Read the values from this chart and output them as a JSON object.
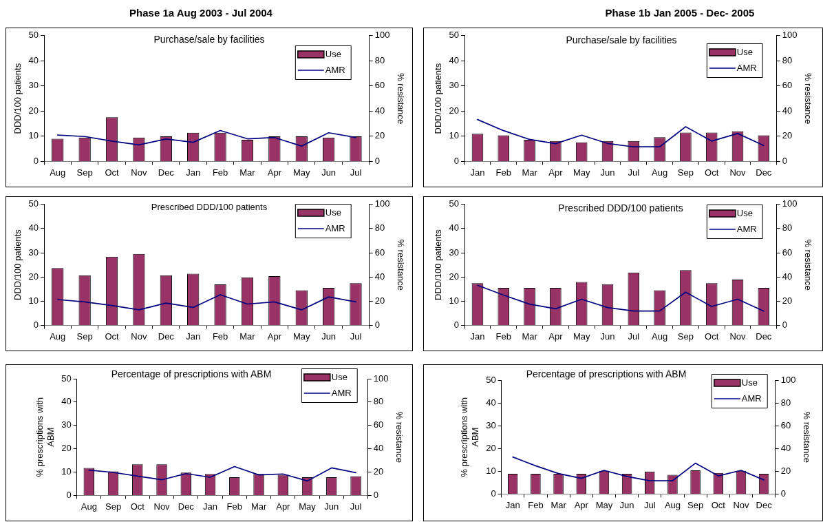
{
  "chart_data": [
    {
      "type": "bar",
      "title": "Purchase/sale by facilities",
      "annotations": [
        "Phase 1a Aug 2003 - Jul 2004"
      ],
      "ylabel": "DDD/100 patients",
      "y2label": "% resistance",
      "categories": [
        "Aug",
        "Sep",
        "Oct",
        "Nov",
        "Dec",
        "Jan",
        "Feb",
        "Mar",
        "Apr",
        "May",
        "Jun",
        "Jul"
      ],
      "series": [
        {
          "name": "Use",
          "color": "#993366",
          "values": [
            9.0,
            9.5,
            17.6,
            9.5,
            10.0,
            11.4,
            11.4,
            8.6,
            10.0,
            10.0,
            9.5,
            10.0
          ]
        },
        {
          "name": "AMR",
          "type": "line",
          "axis": "y2",
          "color": "#000080",
          "values": [
            21.0,
            19.8,
            16.2,
            13.2,
            17.8,
            15.2,
            24.6,
            18.0,
            19.0,
            12.2,
            22.8,
            19.0
          ]
        }
      ],
      "ylim": [
        0,
        50
      ],
      "yticks": [
        0,
        10,
        20,
        30,
        40,
        50
      ],
      "y2lim": [
        0,
        100
      ],
      "y2ticks": [
        0,
        20,
        40,
        60,
        80,
        100
      ],
      "legend": "top right"
    },
    {
      "type": "bar",
      "title": "Purchase/sale by facilities",
      "annotations": [
        "Phase 1b Jan 2005 - Dec- 2005"
      ],
      "ylabel": "DDD/100 patients",
      "y2label": "% resistance",
      "categories": [
        "Jan",
        "Feb",
        "Mar",
        "Apr",
        "May",
        "Jun",
        "Jul",
        "Aug",
        "Sep",
        "Oct",
        "Nov",
        "Dec"
      ],
      "series": [
        {
          "name": "Use",
          "color": "#993366",
          "values": [
            11.0,
            10.4,
            8.6,
            8.1,
            7.6,
            8.1,
            8.1,
            9.6,
            11.5,
            11.5,
            12.0,
            10.4
          ]
        },
        {
          "name": "AMR",
          "type": "line",
          "axis": "y2",
          "color": "#000080",
          "values": [
            33.3,
            24.5,
            17.5,
            14.1,
            20.9,
            14.3,
            11.6,
            11.6,
            27.6,
            16.2,
            22.2,
            12.7
          ]
        }
      ],
      "ylim": [
        0,
        50
      ],
      "yticks": [
        0,
        10,
        20,
        30,
        40,
        50
      ],
      "y2lim": [
        0,
        100
      ],
      "y2ticks": [
        0,
        20,
        40,
        60,
        80,
        100
      ],
      "legend": "top right"
    },
    {
      "type": "bar",
      "title": "Prescribed DDD/100 patients",
      "ylabel": "DDD/100 patients",
      "y2label": "% resistance",
      "categories": [
        "Aug",
        "Sep",
        "Oct",
        "Nov",
        "Dec",
        "Jan",
        "Feb",
        "Mar",
        "Apr",
        "May",
        "Jun",
        "Jul"
      ],
      "series": [
        {
          "name": "Use",
          "color": "#993366",
          "values": [
            23.7,
            20.7,
            28.4,
            29.5,
            20.7,
            21.3,
            16.9,
            19.8,
            20.3,
            14.5,
            15.5,
            17.4
          ]
        },
        {
          "name": "AMR",
          "type": "line",
          "axis": "y2",
          "color": "#000080",
          "values": [
            21.3,
            19.4,
            16.4,
            12.8,
            18.4,
            14.8,
            25.3,
            17.6,
            19.4,
            12.8,
            23.5,
            19.4
          ]
        }
      ],
      "ylim": [
        0,
        50
      ],
      "yticks": [
        0,
        10,
        20,
        30,
        40,
        50
      ],
      "y2lim": [
        0,
        100
      ],
      "y2ticks": [
        0,
        20,
        40,
        60,
        80,
        100
      ],
      "legend": "top right"
    },
    {
      "type": "bar",
      "title": "Prescribed DDD/100 patients",
      "ylabel": "DDD/100 patients",
      "y2label": "% resistance",
      "categories": [
        "Jan",
        "Feb",
        "Mar",
        "Apr",
        "May",
        "Jun",
        "Jul",
        "Aug",
        "Sep",
        "Oct",
        "Nov",
        "Dec"
      ],
      "series": [
        {
          "name": "Use",
          "color": "#993366",
          "values": [
            17.4,
            15.5,
            15.5,
            15.5,
            17.9,
            17.0,
            21.8,
            14.5,
            22.8,
            17.4,
            18.9,
            15.5
          ]
        },
        {
          "name": "AMR",
          "type": "line",
          "axis": "y2",
          "color": "#000080",
          "values": [
            33.1,
            25.0,
            17.5,
            13.7,
            21.6,
            14.7,
            11.8,
            11.8,
            27.4,
            15.6,
            21.6,
            11.8
          ]
        }
      ],
      "ylim": [
        0,
        50
      ],
      "yticks": [
        0,
        10,
        20,
        30,
        40,
        50
      ],
      "y2lim": [
        0,
        100
      ],
      "y2ticks": [
        0,
        20,
        40,
        60,
        80,
        100
      ],
      "legend": "top right"
    },
    {
      "type": "bar",
      "title": "Percentage of prescriptions with ABM",
      "ylabel": "% prescriptions with ABM",
      "y2label": "% resistance",
      "categories": [
        "Aug",
        "Sep",
        "Oct",
        "Nov",
        "Dec",
        "Jan",
        "Feb",
        "Mar",
        "Apr",
        "May",
        "Jun",
        "Jul"
      ],
      "series": [
        {
          "name": "Use",
          "color": "#993366",
          "values": [
            11.8,
            10.3,
            13.3,
            13.3,
            9.8,
            9.2,
            7.8,
            9.2,
            8.8,
            7.8,
            7.8,
            8.2
          ]
        },
        {
          "name": "AMR",
          "type": "line",
          "axis": "y2",
          "color": "#000080",
          "values": [
            21.7,
            19.7,
            16.5,
            13.4,
            18.7,
            15.6,
            24.7,
            17.6,
            18.4,
            12.4,
            23.6,
            19.5
          ]
        }
      ],
      "ylim": [
        0,
        50
      ],
      "yticks": [
        0,
        10,
        20,
        30,
        40,
        50
      ],
      "y2lim": [
        0,
        100
      ],
      "y2ticks": [
        0,
        20,
        40,
        60,
        80,
        100
      ],
      "legend": "top right"
    },
    {
      "type": "bar",
      "title": "Percentage of prescriptions with ABM",
      "ylabel": "% prescriptions with ABM",
      "y2label": "% resistance",
      "categories": [
        "Jan",
        "Feb",
        "Mar",
        "Apr",
        "May",
        "Jun",
        "Jul",
        "Aug",
        "Sep",
        "Oct",
        "Nov",
        "Dec"
      ],
      "series": [
        {
          "name": "Use",
          "color": "#993366",
          "values": [
            8.9,
            8.9,
            8.9,
            8.9,
            10.2,
            8.9,
            9.9,
            8.4,
            10.4,
            9.3,
            10.2,
            8.9
          ]
        },
        {
          "name": "AMR",
          "type": "line",
          "axis": "y2",
          "color": "#000080",
          "values": [
            32.5,
            24.8,
            18.0,
            13.8,
            20.8,
            15.4,
            11.7,
            11.7,
            27.1,
            15.9,
            20.8,
            12.4
          ]
        }
      ],
      "ylim": [
        0,
        50
      ],
      "yticks": [
        0,
        10,
        20,
        30,
        40,
        50
      ],
      "y2lim": [
        0,
        100
      ],
      "y2ticks": [
        0,
        20,
        40,
        60,
        80,
        100
      ],
      "legend": "top right"
    }
  ]
}
